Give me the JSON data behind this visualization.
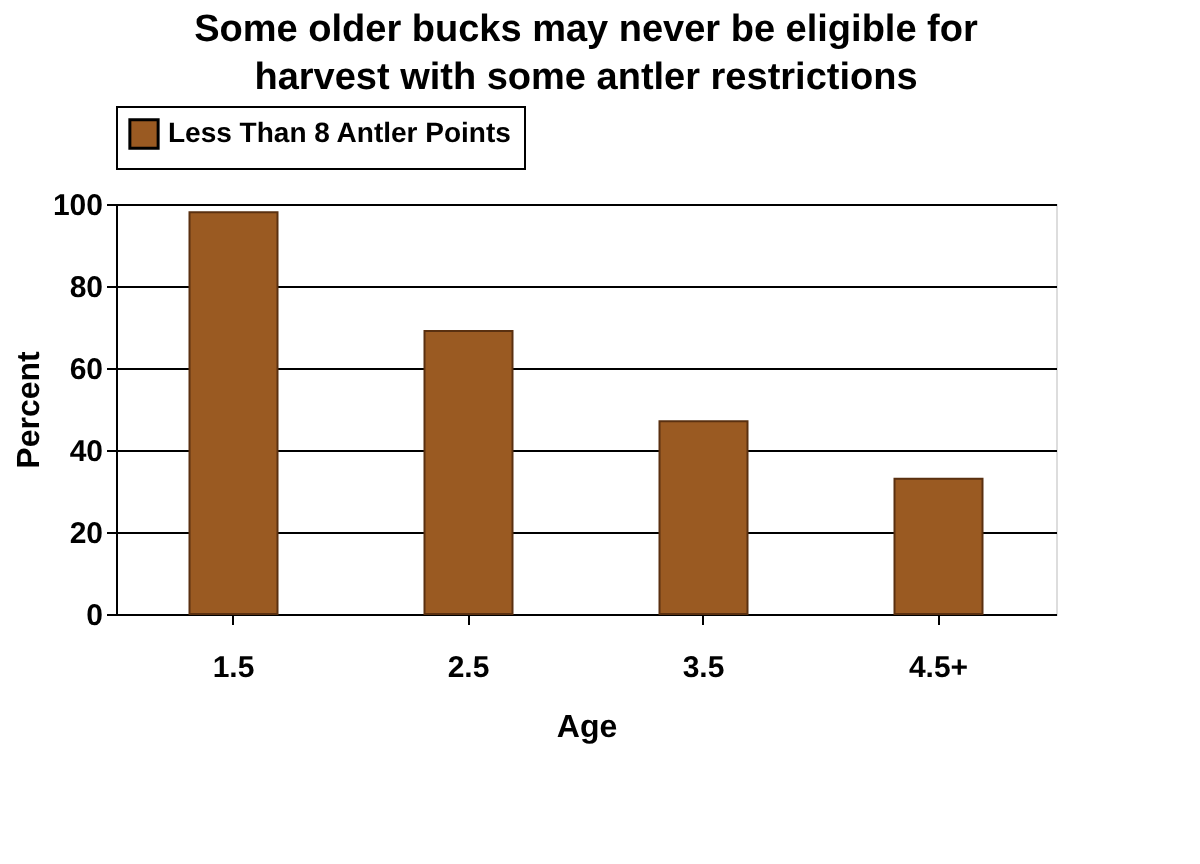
{
  "chart_data": {
    "type": "bar",
    "title": "Some older bucks may never be eligible for harvest with some antler restrictions",
    "categories": [
      "1.5",
      "2.5",
      "3.5",
      "4.5+"
    ],
    "series": [
      {
        "name": "Less Than 8 Antler Points",
        "color": "#9a5a22",
        "values": [
          98,
          69,
          47,
          33
        ]
      }
    ],
    "xlabel": "Age",
    "ylabel": "Percent",
    "ylim": [
      0,
      100
    ],
    "yticks": [
      0,
      20,
      40,
      60,
      80,
      100
    ],
    "grid": "y",
    "legend": "top"
  }
}
